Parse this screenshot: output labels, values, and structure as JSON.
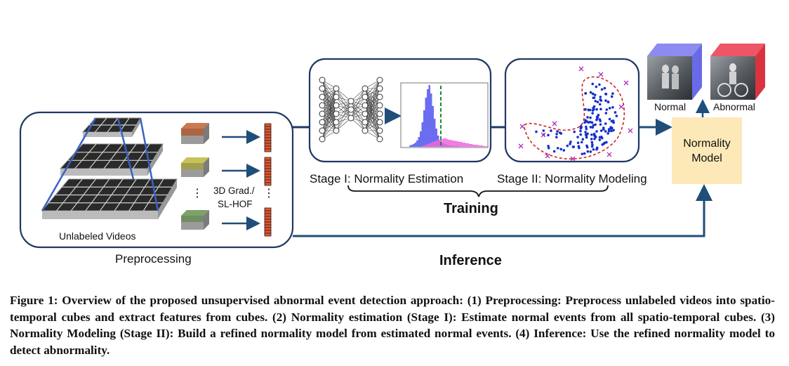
{
  "figure": {
    "preprocessing_label": "Preprocessing",
    "unlabeled_videos_label": "Unlabeled Videos",
    "feature_label_line1": "3D Grad./",
    "feature_label_line2": "SL-HOF",
    "stage1_label": "Stage I: Normality Estimation",
    "stage2_label": "Stage II: Normality Modeling",
    "training_label": "Training",
    "inference_label": "Inference",
    "normal_label": "Normal",
    "abnormal_label": "Abnormal",
    "model_line1": "Normality",
    "model_line2": "Model",
    "colors": {
      "frame_blue": "#1f3864",
      "arrow_blue": "#1f4e79",
      "pyramid_blue": "#3a62c4",
      "histogram_blue": "#6b6df0",
      "histogram_pink": "#ee66dd",
      "threshold_green": "#1a8a3a",
      "scatter_blue": "#1530cc",
      "scatter_magenta": "#b030c0",
      "boundary_red": "#d02020",
      "model_fill": "#fde9b8",
      "cube_normal": "#7777ee",
      "cube_abnormal": "#ee4455",
      "feature_bar": "#e8552a"
    }
  },
  "caption": {
    "text": "Figure 1: Overview of the proposed unsupervised abnormal event detection approach: (1) Preprocessing: Preprocess unlabeled videos into spatio-temporal cubes and extract features from cubes. (2) Normality estimation (Stage I): Estimate normal events from all spatio-temporal cubes. (3) Normality Modeling (Stage II): Build a refined normality model from estimated normal events. (4) Inference: Use the refined normality model to detect abnormality."
  }
}
